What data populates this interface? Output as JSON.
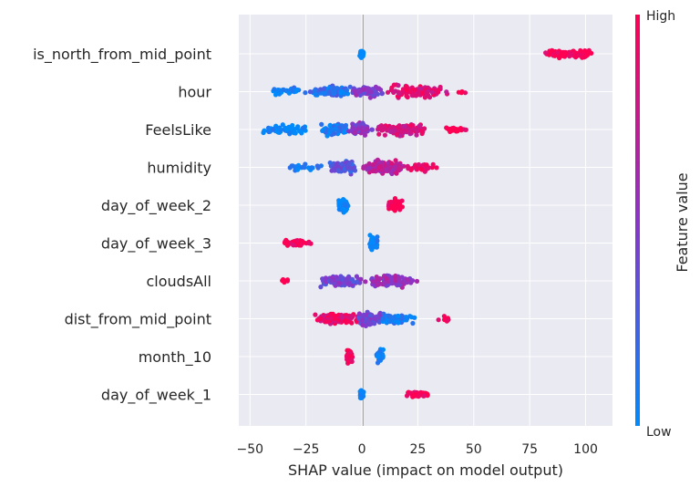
{
  "chart_data": {
    "type": "scatter",
    "subtype": "shap-beeswarm",
    "title": "",
    "xlabel": "SHAP value (impact on model output)",
    "xlim": [
      -55,
      112
    ],
    "xticks": [
      -50,
      -25,
      0,
      25,
      50,
      75,
      100
    ],
    "xtick_labels": [
      "−50",
      "−25",
      "0",
      "25",
      "50",
      "75",
      "100"
    ],
    "grid": true,
    "features": [
      {
        "name": "is_north_from_mid_point",
        "groups": [
          {
            "lo": -1,
            "hi": 1,
            "n": 70,
            "fv": 0.0,
            "sp": 0.6
          },
          {
            "lo": 79,
            "hi": 104,
            "n": 90,
            "fv": 1.0,
            "sp": 0.6
          }
        ]
      },
      {
        "name": "hour",
        "groups": [
          {
            "lo": -42,
            "hi": -25,
            "n": 35,
            "fv": 0.05,
            "sp": 0.6
          },
          {
            "lo": -25,
            "hi": -5,
            "n": 80,
            "fv": 0.15,
            "sp": 0.9
          },
          {
            "lo": -5,
            "hi": 10,
            "n": 70,
            "fv": 0.45,
            "sp": 0.9
          },
          {
            "lo": 10,
            "hi": 40,
            "n": 110,
            "fv": 0.85,
            "sp": 1.0
          },
          {
            "lo": 40,
            "hi": 49,
            "n": 4,
            "fv": 1.0,
            "sp": 0.3
          }
        ]
      },
      {
        "name": "FeelsLike",
        "groups": [
          {
            "lo": -47,
            "hi": -20,
            "n": 60,
            "fv": 0.0,
            "sp": 0.7
          },
          {
            "lo": -20,
            "hi": -5,
            "n": 60,
            "fv": 0.1,
            "sp": 0.9
          },
          {
            "lo": -7,
            "hi": 5,
            "n": 70,
            "fv": 0.5,
            "sp": 1.0
          },
          {
            "lo": 5,
            "hi": 30,
            "n": 100,
            "fv": 0.8,
            "sp": 1.0
          },
          {
            "lo": 35,
            "hi": 48,
            "n": 18,
            "fv": 1.0,
            "sp": 0.5
          }
        ]
      },
      {
        "name": "humidity",
        "groups": [
          {
            "lo": -36,
            "hi": -15,
            "n": 25,
            "fv": 0.05,
            "sp": 0.6
          },
          {
            "lo": -15,
            "hi": 0,
            "n": 80,
            "fv": 0.3,
            "sp": 0.9
          },
          {
            "lo": 0,
            "hi": 20,
            "n": 120,
            "fv": 0.7,
            "sp": 1.0
          },
          {
            "lo": 20,
            "hi": 35,
            "n": 30,
            "fv": 0.95,
            "sp": 0.6
          }
        ]
      },
      {
        "name": "day_of_week_2",
        "groups": [
          {
            "lo": -11,
            "hi": -6,
            "n": 70,
            "fv": 0.0,
            "sp": 1.0
          },
          {
            "lo": 11,
            "hi": 19,
            "n": 60,
            "fv": 1.0,
            "sp": 0.9
          }
        ]
      },
      {
        "name": "day_of_week_3",
        "groups": [
          {
            "lo": -36,
            "hi": -22,
            "n": 55,
            "fv": 1.0,
            "sp": 0.5
          },
          {
            "lo": 3,
            "hi": 7,
            "n": 80,
            "fv": 0.0,
            "sp": 1.0
          }
        ]
      },
      {
        "name": "cloudsAll",
        "groups": [
          {
            "lo": -40,
            "hi": -30,
            "n": 6,
            "fv": 1.0,
            "sp": 0.3
          },
          {
            "lo": -20,
            "hi": 0,
            "n": 110,
            "fv": 0.4,
            "sp": 1.0
          },
          {
            "lo": 0,
            "hi": 25,
            "n": 110,
            "fv": 0.55,
            "sp": 1.0
          }
        ]
      },
      {
        "name": "dist_from_mid_point",
        "groups": [
          {
            "lo": -22,
            "hi": 0,
            "n": 100,
            "fv": 0.9,
            "sp": 0.8
          },
          {
            "lo": -2,
            "hi": 10,
            "n": 70,
            "fv": 0.4,
            "sp": 1.0
          },
          {
            "lo": 5,
            "hi": 25,
            "n": 80,
            "fv": 0.05,
            "sp": 0.8
          },
          {
            "lo": 33,
            "hi": 40,
            "n": 8,
            "fv": 1.0,
            "sp": 0.4
          }
        ]
      },
      {
        "name": "month_10",
        "groups": [
          {
            "lo": -7,
            "hi": -4,
            "n": 60,
            "fv": 1.0,
            "sp": 1.0
          },
          {
            "lo": 6,
            "hi": 10,
            "n": 40,
            "fv": 0.0,
            "sp": 1.0
          }
        ]
      },
      {
        "name": "day_of_week_1",
        "groups": [
          {
            "lo": -1,
            "hi": 1,
            "n": 60,
            "fv": 0.0,
            "sp": 0.6
          },
          {
            "lo": 19,
            "hi": 30,
            "n": 70,
            "fv": 1.0,
            "sp": 0.4
          }
        ]
      }
    ],
    "colorbar": {
      "label": "Feature value",
      "high_label": "High",
      "low_label": "Low",
      "low_color": "#008afb",
      "mid_color": "#8a35c8",
      "high_color": "#ff0052"
    }
  }
}
